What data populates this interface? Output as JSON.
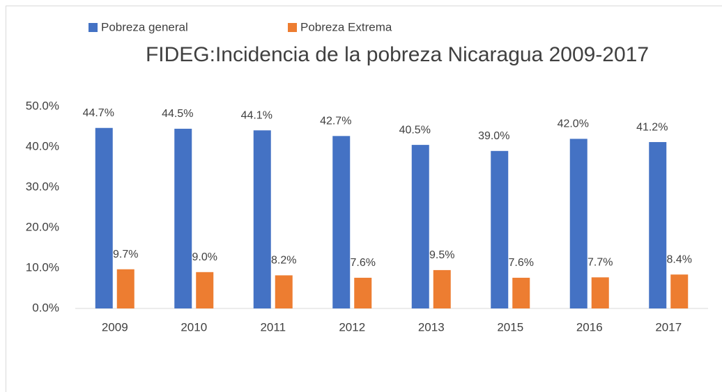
{
  "chart_data": {
    "type": "bar",
    "title": "FIDEG:Incidencia de la pobreza Nicaragua 2009-2017",
    "categories": [
      "2009",
      "2010",
      "2011",
      "2012",
      "2013",
      "2015",
      "2016",
      "2017"
    ],
    "series": [
      {
        "name": "Pobreza general",
        "color": "#4472c4",
        "values": [
          44.7,
          44.5,
          44.1,
          42.7,
          40.5,
          39.0,
          42.0,
          41.2
        ],
        "value_labels": [
          "44.7%",
          "44.5%",
          "44.1%",
          "42.7%",
          "40.5%",
          "39.0%",
          "42.0%",
          "41.2%"
        ]
      },
      {
        "name": "Pobreza Extrema",
        "color": "#ed7d31",
        "values": [
          9.7,
          9.0,
          8.2,
          7.6,
          9.5,
          7.6,
          7.7,
          8.4
        ],
        "value_labels": [
          "9.7%",
          "9.0%",
          "8.2%",
          "7.6%",
          "9.5%",
          "7.6%",
          "7.7%",
          "8.4%"
        ]
      }
    ],
    "ylim": [
      0,
      50
    ],
    "yticks": [
      {
        "value": 0,
        "label": "0.0%"
      },
      {
        "value": 10,
        "label": "10.0%"
      },
      {
        "value": 20,
        "label": "20.0%"
      },
      {
        "value": 30,
        "label": "30.0%"
      },
      {
        "value": 40,
        "label": "40.0%"
      },
      {
        "value": 50,
        "label": "50.0%"
      }
    ],
    "grid": false,
    "legend": "top"
  }
}
